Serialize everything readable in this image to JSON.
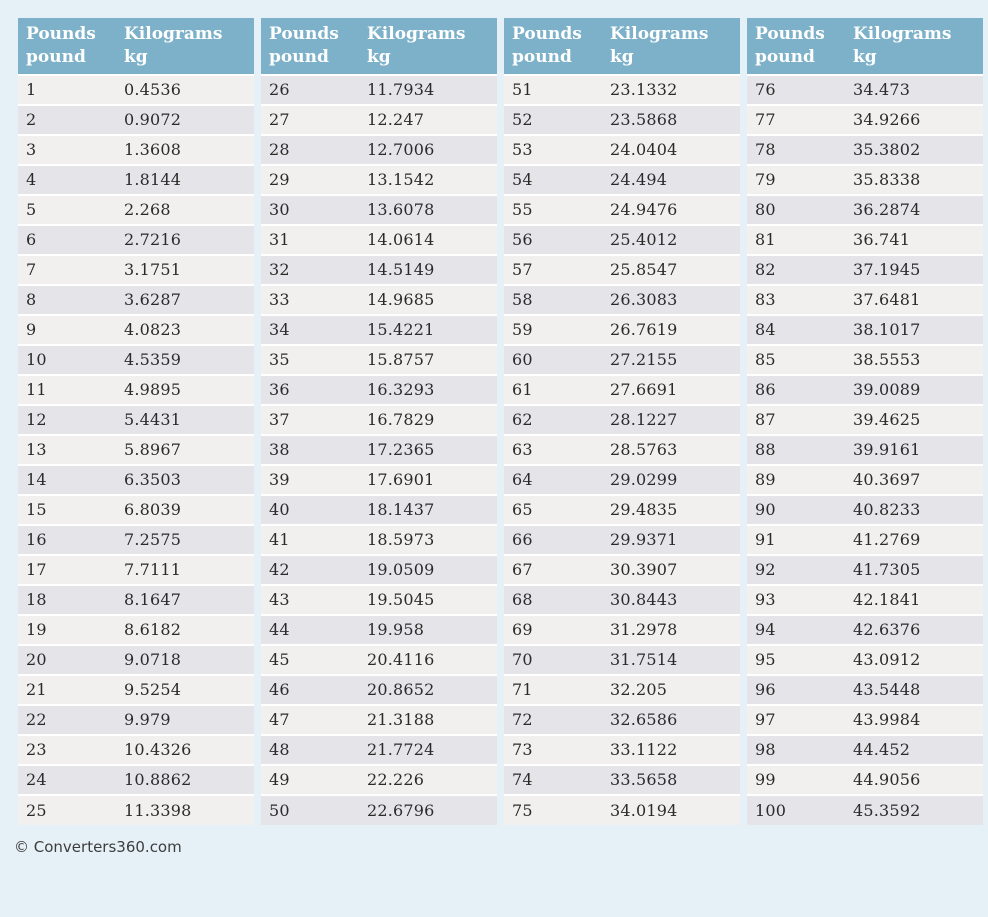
{
  "header": {
    "pounds_line1": "Pounds",
    "pounds_line2": "pound",
    "kilograms_line1": "Kilograms",
    "kilograms_line2": "kg"
  },
  "footer": {
    "copyright": "© Converters360.com"
  },
  "colors": {
    "page_bg": "#e6f0f7",
    "header_bg": "#7db1c9",
    "row_light": "#f1f0ef",
    "row_dark": "#e5e5e9",
    "header_text": "#ffffff",
    "cell_text": "#2b2b2b",
    "row_divider": "#ffffff",
    "footer_text": "#3d3d3d"
  },
  "tables": [
    {
      "rows": [
        [
          "1",
          "0.4536"
        ],
        [
          "2",
          "0.9072"
        ],
        [
          "3",
          "1.3608"
        ],
        [
          "4",
          "1.8144"
        ],
        [
          "5",
          "2.268"
        ],
        [
          "6",
          "2.7216"
        ],
        [
          "7",
          "3.1751"
        ],
        [
          "8",
          "3.6287"
        ],
        [
          "9",
          "4.0823"
        ],
        [
          "10",
          "4.5359"
        ],
        [
          "11",
          "4.9895"
        ],
        [
          "12",
          "5.4431"
        ],
        [
          "13",
          "5.8967"
        ],
        [
          "14",
          "6.3503"
        ],
        [
          "15",
          "6.8039"
        ],
        [
          "16",
          "7.2575"
        ],
        [
          "17",
          "7.7111"
        ],
        [
          "18",
          "8.1647"
        ],
        [
          "19",
          "8.6182"
        ],
        [
          "20",
          "9.0718"
        ],
        [
          "21",
          "9.5254"
        ],
        [
          "22",
          "9.979"
        ],
        [
          "23",
          "10.4326"
        ],
        [
          "24",
          "10.8862"
        ],
        [
          "25",
          "11.3398"
        ]
      ]
    },
    {
      "rows": [
        [
          "26",
          "11.7934"
        ],
        [
          "27",
          "12.247"
        ],
        [
          "28",
          "12.7006"
        ],
        [
          "29",
          "13.1542"
        ],
        [
          "30",
          "13.6078"
        ],
        [
          "31",
          "14.0614"
        ],
        [
          "32",
          "14.5149"
        ],
        [
          "33",
          "14.9685"
        ],
        [
          "34",
          "15.4221"
        ],
        [
          "35",
          "15.8757"
        ],
        [
          "36",
          "16.3293"
        ],
        [
          "37",
          "16.7829"
        ],
        [
          "38",
          "17.2365"
        ],
        [
          "39",
          "17.6901"
        ],
        [
          "40",
          "18.1437"
        ],
        [
          "41",
          "18.5973"
        ],
        [
          "42",
          "19.0509"
        ],
        [
          "43",
          "19.5045"
        ],
        [
          "44",
          "19.958"
        ],
        [
          "45",
          "20.4116"
        ],
        [
          "46",
          "20.8652"
        ],
        [
          "47",
          "21.3188"
        ],
        [
          "48",
          "21.7724"
        ],
        [
          "49",
          "22.226"
        ],
        [
          "50",
          "22.6796"
        ]
      ]
    },
    {
      "rows": [
        [
          "51",
          "23.1332"
        ],
        [
          "52",
          "23.5868"
        ],
        [
          "53",
          "24.0404"
        ],
        [
          "54",
          "24.494"
        ],
        [
          "55",
          "24.9476"
        ],
        [
          "56",
          "25.4012"
        ],
        [
          "57",
          "25.8547"
        ],
        [
          "58",
          "26.3083"
        ],
        [
          "59",
          "26.7619"
        ],
        [
          "60",
          "27.2155"
        ],
        [
          "61",
          "27.6691"
        ],
        [
          "62",
          "28.1227"
        ],
        [
          "63",
          "28.5763"
        ],
        [
          "64",
          "29.0299"
        ],
        [
          "65",
          "29.4835"
        ],
        [
          "66",
          "29.9371"
        ],
        [
          "67",
          "30.3907"
        ],
        [
          "68",
          "30.8443"
        ],
        [
          "69",
          "31.2978"
        ],
        [
          "70",
          "31.7514"
        ],
        [
          "71",
          "32.205"
        ],
        [
          "72",
          "32.6586"
        ],
        [
          "73",
          "33.1122"
        ],
        [
          "74",
          "33.5658"
        ],
        [
          "75",
          "34.0194"
        ]
      ]
    },
    {
      "rows": [
        [
          "76",
          "34.473"
        ],
        [
          "77",
          "34.9266"
        ],
        [
          "78",
          "35.3802"
        ],
        [
          "79",
          "35.8338"
        ],
        [
          "80",
          "36.2874"
        ],
        [
          "81",
          "36.741"
        ],
        [
          "82",
          "37.1945"
        ],
        [
          "83",
          "37.6481"
        ],
        [
          "84",
          "38.1017"
        ],
        [
          "85",
          "38.5553"
        ],
        [
          "86",
          "39.0089"
        ],
        [
          "87",
          "39.4625"
        ],
        [
          "88",
          "39.9161"
        ],
        [
          "89",
          "40.3697"
        ],
        [
          "90",
          "40.8233"
        ],
        [
          "91",
          "41.2769"
        ],
        [
          "92",
          "41.7305"
        ],
        [
          "93",
          "42.1841"
        ],
        [
          "94",
          "42.6376"
        ],
        [
          "95",
          "43.0912"
        ],
        [
          "96",
          "43.5448"
        ],
        [
          "97",
          "43.9984"
        ],
        [
          "98",
          "44.452"
        ],
        [
          "99",
          "44.9056"
        ],
        [
          "100",
          "45.3592"
        ]
      ]
    }
  ]
}
